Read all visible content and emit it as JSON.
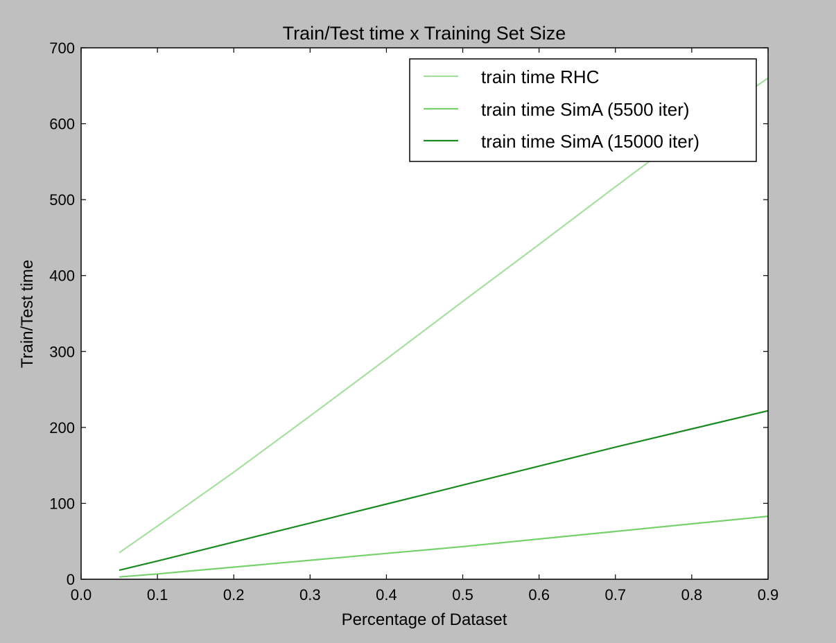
{
  "chart_data": {
    "type": "line",
    "title": "Train/Test time x Training Set Size",
    "xlabel": "Percentage of Dataset",
    "ylabel": "Train/Test time",
    "xlim": [
      0.0,
      0.9
    ],
    "ylim": [
      0,
      700
    ],
    "xticks": [
      "0.0",
      "0.1",
      "0.2",
      "0.3",
      "0.4",
      "0.5",
      "0.6",
      "0.7",
      "0.8",
      "0.9"
    ],
    "yticks": [
      "0",
      "100",
      "200",
      "300",
      "400",
      "500",
      "600",
      "700"
    ],
    "grid": false,
    "legend_position": "top-right",
    "x": [
      0.05,
      0.1,
      0.2,
      0.3,
      0.4,
      0.5,
      0.6,
      0.7,
      0.8,
      0.9
    ],
    "series": [
      {
        "name": "train time RHC",
        "color": "#a6e0a0",
        "values": [
          35,
          70,
          141,
          215,
          290,
          366,
          441,
          517,
          592,
          660
        ]
      },
      {
        "name": "train time SimA (5500 iter)",
        "color": "#76d06c",
        "values": [
          3,
          7,
          16,
          25,
          34,
          43,
          53,
          63,
          73,
          83
        ]
      },
      {
        "name": "train time SimA (15000 iter)",
        "color": "#1b8a23",
        "values": [
          12,
          24,
          49,
          74,
          99,
          124,
          149,
          174,
          198,
          222
        ]
      }
    ]
  }
}
